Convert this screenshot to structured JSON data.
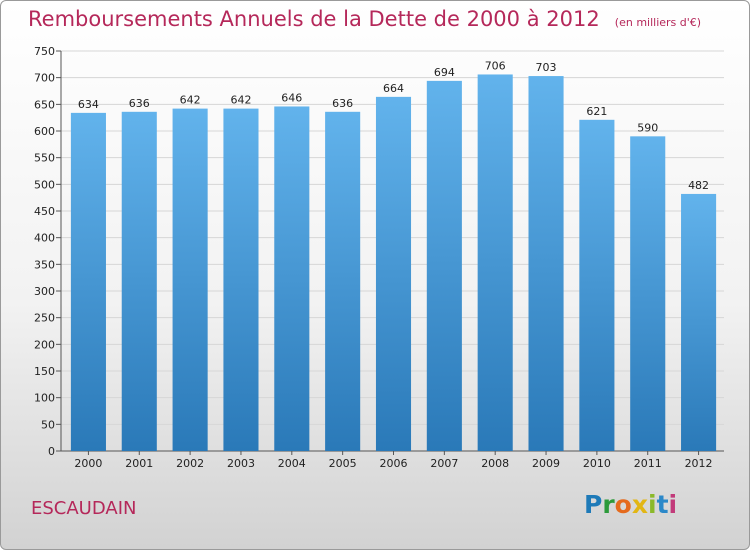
{
  "header": {
    "title": "Remboursements Annuels de la Dette de 2000 à 2012",
    "subtitle": "(en milliers d'€)"
  },
  "footer": {
    "town": "ESCAUDAIN",
    "logo": "Proxiti"
  },
  "colors": {
    "title": "#b5285a",
    "bar_top": "#62b3ec",
    "bar_bottom": "#2a79b8"
  },
  "chart_data": {
    "type": "bar",
    "title": "Remboursements Annuels de la Dette de 2000 à 2012",
    "subtitle": "(en milliers d'€)",
    "categories": [
      "2000",
      "2001",
      "2002",
      "2003",
      "2004",
      "2005",
      "2006",
      "2007",
      "2008",
      "2009",
      "2010",
      "2011",
      "2012"
    ],
    "values": [
      634,
      636,
      642,
      642,
      646,
      636,
      664,
      694,
      706,
      703,
      621,
      590,
      482
    ],
    "ylim": [
      0,
      750
    ],
    "yticks": [
      0,
      50,
      100,
      150,
      200,
      250,
      300,
      350,
      400,
      450,
      500,
      550,
      600,
      650,
      700,
      750
    ],
    "grid": true,
    "data_labels": true
  }
}
